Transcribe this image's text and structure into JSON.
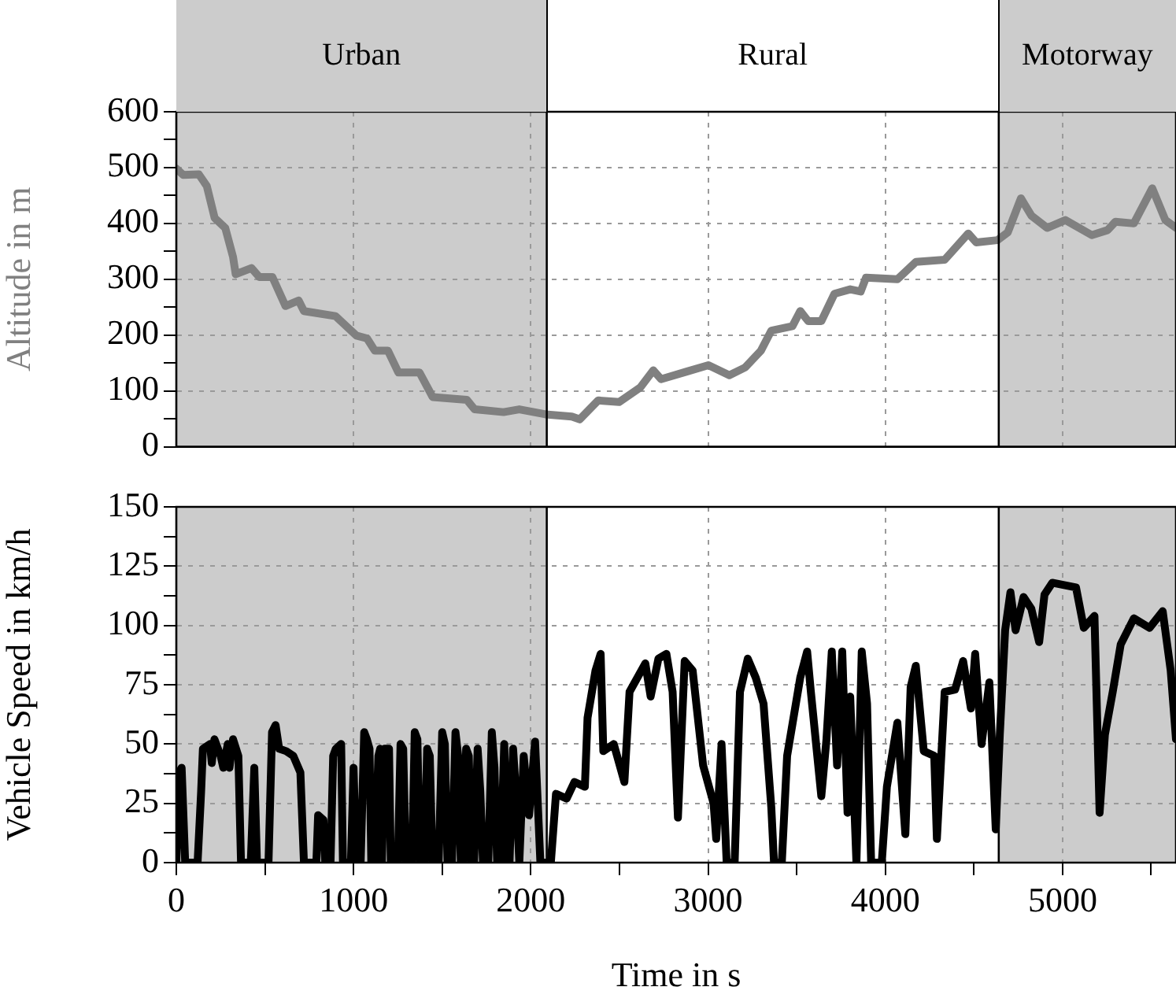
{
  "chart_data": [
    {
      "type": "line",
      "ylabel": "Altitude in m",
      "grid": true,
      "tick_labels": "y",
      "xlim": [
        0,
        5640
      ],
      "ylim": [
        0,
        600
      ],
      "xticks": [
        0,
        1000,
        2000,
        3000,
        4000,
        5000
      ],
      "yticks": [
        0,
        {
          "value": 50,
          "label": null
        },
        100,
        {
          "value": 150,
          "label": null
        },
        200,
        {
          "value": 250,
          "label": null
        },
        300,
        {
          "value": 350,
          "label": null
        },
        400,
        {
          "value": 450,
          "label": null
        },
        500,
        {
          "value": 550,
          "label": null
        },
        600
      ],
      "bands": [
        {
          "axis": "x",
          "from": 0,
          "to": 2090,
          "label": "Urban",
          "color": "#cccccc"
        },
        {
          "axis": "x",
          "from": 4640,
          "to": 5640,
          "label": "Motorway",
          "color": "#cccccc"
        }
      ],
      "ref_lines": [
        {
          "axis": "x",
          "value": 2090,
          "color": "#000000"
        },
        {
          "axis": "x",
          "value": 4640,
          "color": "#000000"
        }
      ],
      "annotations": [
        "Rural"
      ],
      "x": [
        0,
        39,
        127,
        172,
        216,
        276,
        320,
        335,
        424,
        468,
        542,
        616,
        690,
        720,
        898,
        1016,
        1076,
        1120,
        1194,
        1253,
        1372,
        1446,
        1639,
        1683,
        1846,
        1935,
        2083,
        2231,
        2276,
        2380,
        2498,
        2617,
        2691,
        2735,
        2883,
        3002,
        3120,
        3209,
        3298,
        3357,
        3476,
        3520,
        3565,
        3639,
        3713,
        3802,
        3861,
        3891,
        4068,
        4172,
        4335,
        4468,
        4513,
        4632,
        4691,
        4765,
        4824,
        4913,
        5016,
        5165,
        5254,
        5298,
        5402,
        5506,
        5580,
        5640
      ],
      "series": [
        {
          "color": "#808080",
          "values": [
            498,
            487,
            488,
            467,
            410,
            392,
            340,
            309,
            320,
            304,
            304,
            252,
            262,
            243,
            234,
            199,
            194,
            172,
            172,
            133,
            133,
            89,
            84,
            67,
            62,
            67,
            58,
            54,
            49,
            83,
            80,
            106,
            137,
            121,
            135,
            146,
            128,
            142,
            172,
            208,
            216,
            243,
            225,
            225,
            274,
            282,
            278,
            303,
            300,
            331,
            335,
            382,
            366,
            370,
            384,
            445,
            414,
            392,
            406,
            379,
            388,
            403,
            400,
            463,
            406,
            392
          ]
        }
      ]
    },
    {
      "type": "line",
      "ylabel": "Vehicle Speed in km/h",
      "xlabel": "Time in s",
      "grid": true,
      "xlim": [
        0,
        5640
      ],
      "ylim": [
        0,
        150
      ],
      "xticks": [
        0,
        {
          "value": 500,
          "label": null
        },
        1000,
        {
          "value": 1500,
          "label": null
        },
        2000,
        {
          "value": 2500,
          "label": null
        },
        3000,
        {
          "value": 3500,
          "label": null
        },
        4000,
        {
          "value": 4500,
          "label": null
        },
        5000,
        {
          "value": 5500,
          "label": null
        }
      ],
      "yticks": [
        0,
        {
          "value": 12.5,
          "label": null
        },
        25,
        {
          "value": 37.5,
          "label": null
        },
        50,
        {
          "value": 62.5,
          "label": null
        },
        75,
        {
          "value": 87.5,
          "label": null
        },
        100,
        {
          "value": 112.5,
          "label": null
        },
        125,
        {
          "value": 137.5,
          "label": null
        },
        150
      ],
      "bands": [
        {
          "axis": "x",
          "from": 0,
          "to": 2090,
          "color": "#cccccc"
        },
        {
          "axis": "x",
          "from": 4640,
          "to": 5640,
          "color": "#cccccc"
        }
      ],
      "ref_lines": [
        {
          "axis": "x",
          "value": 2090,
          "color": "#000000"
        },
        {
          "axis": "x",
          "value": 4640,
          "color": "#000000"
        }
      ],
      "x": [
        0,
        15,
        30,
        50,
        120,
        140,
        150,
        190,
        200,
        215,
        250,
        265,
        290,
        300,
        320,
        350,
        365,
        420,
        440,
        455,
        520,
        540,
        560,
        580,
        620,
        660,
        700,
        720,
        790,
        800,
        830,
        840,
        870,
        885,
        900,
        930,
        940,
        985,
        1000,
        1015,
        1040,
        1060,
        1075,
        1090,
        1100,
        1120,
        1140,
        1150,
        1160,
        1175,
        1200,
        1210,
        1250,
        1265,
        1280,
        1295,
        1330,
        1345,
        1360,
        1375,
        1400,
        1415,
        1430,
        1445,
        1480,
        1500,
        1515,
        1530,
        1555,
        1575,
        1590,
        1605,
        1620,
        1635,
        1650,
        1665,
        1680,
        1700,
        1715,
        1730,
        1760,
        1780,
        1795,
        1810,
        1830,
        1850,
        1870,
        1880,
        1900,
        1920,
        1935,
        1960,
        1990,
        2024,
        2054,
        2113,
        2142,
        2202,
        2246,
        2305,
        2320,
        2365,
        2394,
        2409,
        2468,
        2528,
        2557,
        2646,
        2676,
        2720,
        2765,
        2800,
        2830,
        2868,
        2913,
        2972,
        3031,
        3046,
        3076,
        3105,
        3150,
        3180,
        3224,
        3269,
        3313,
        3357,
        3372,
        3416,
        3446,
        3520,
        3559,
        3580,
        3639,
        3668,
        3698,
        3728,
        3757,
        3787,
        3802,
        3837,
        3867,
        3897,
        3920,
        3980,
        4009,
        4068,
        4113,
        4143,
        4172,
        4217,
        4276,
        4291,
        4335,
        4394,
        4439,
        4483,
        4507,
        4543,
        4587,
        4623,
        4646,
        4676,
        4706,
        4735,
        4780,
        4824,
        4868,
        4898,
        4942,
        5076,
        5120,
        5180,
        5209,
        5239,
        5283,
        5328,
        5402,
        5491,
        5565,
        5610,
        5640
      ],
      "series": [
        {
          "color": "#000000",
          "values": [
            0,
            38,
            40,
            0,
            0,
            30,
            48,
            50,
            42,
            52,
            45,
            40,
            50,
            40,
            52,
            45,
            0,
            0,
            40,
            0,
            0,
            55,
            58,
            48,
            47,
            45,
            38,
            0,
            0,
            20,
            18,
            0,
            0,
            45,
            48,
            50,
            0,
            0,
            40,
            0,
            0,
            55,
            52,
            48,
            0,
            0,
            45,
            48,
            0,
            48,
            48,
            0,
            0,
            50,
            48,
            0,
            0,
            55,
            52,
            0,
            0,
            48,
            45,
            0,
            0,
            55,
            50,
            0,
            0,
            55,
            45,
            0,
            0,
            48,
            45,
            0,
            0,
            48,
            30,
            0,
            0,
            55,
            40,
            0,
            0,
            50,
            0,
            0,
            48,
            25,
            0,
            45,
            20,
            51,
            0,
            0,
            29,
            27,
            34,
            32,
            61,
            81,
            88,
            47,
            50,
            34,
            72,
            84,
            70,
            86,
            88,
            72,
            19,
            85,
            81,
            41,
            25,
            10,
            50,
            0,
            0,
            72,
            86,
            78,
            67,
            23,
            0,
            0,
            45,
            78,
            89,
            72,
            28,
            52,
            89,
            41,
            89,
            21,
            70,
            0,
            89,
            67,
            0,
            0,
            32,
            59,
            12,
            74,
            83,
            47,
            45,
            10,
            72,
            73,
            85,
            65,
            88,
            50,
            76,
            14,
            54,
            98,
            114,
            98,
            112,
            107,
            93,
            113,
            118,
            116,
            99,
            104,
            21,
            54,
            72,
            92,
            103,
            99,
            106,
            81,
            52
          ]
        }
      ]
    }
  ]
}
